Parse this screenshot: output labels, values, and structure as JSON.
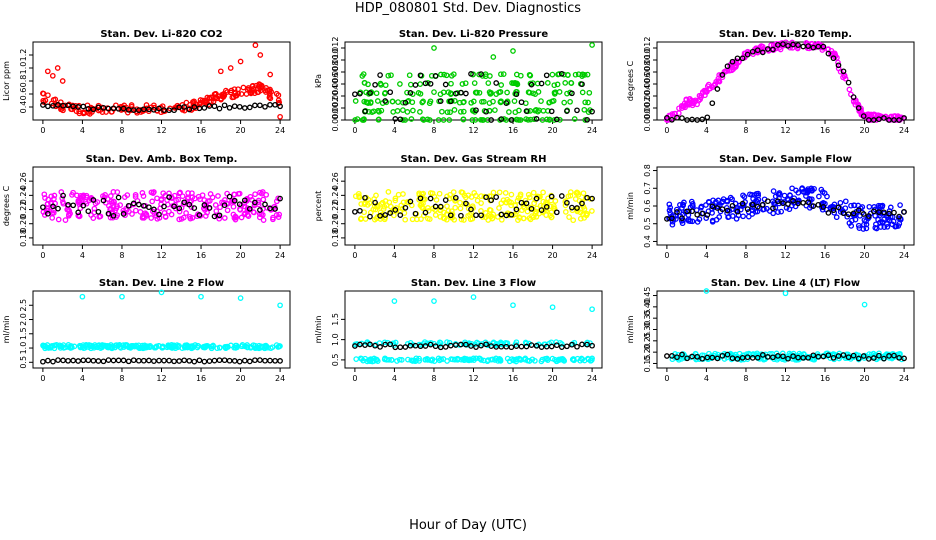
{
  "figure": {
    "title": "HDP_080801  Std. Dev. Diagnostics",
    "xlabel": "Hour of Day (UTC)",
    "black_color": "#000000"
  },
  "chart_data": [
    {
      "type": "scatter",
      "title": "Stan. Dev. Li-820 CO2",
      "ylabel": "Licor ppm",
      "color": "#ff0000",
      "xlim": [
        -1,
        25
      ],
      "ylim": [
        0.2,
        1.4
      ],
      "xticks": [
        0,
        4,
        8,
        12,
        16,
        20,
        24
      ],
      "yticks": [
        "0.4",
        "0.6",
        "0.8",
        "1.0",
        "1.2"
      ],
      "series": [
        {
          "name": "samples",
          "profile": [
            [
              0,
              0.55
            ],
            [
              1,
              0.5
            ],
            [
              2,
              0.42
            ],
            [
              3,
              0.36
            ],
            [
              6,
              0.36
            ],
            [
              10,
              0.38
            ],
            [
              14,
              0.39
            ],
            [
              16,
              0.45
            ],
            [
              18,
              0.58
            ],
            [
              20,
              0.62
            ],
            [
              22,
              0.7
            ],
            [
              24,
              0.5
            ]
          ],
          "spread": 0.14,
          "outliers": [
            [
              0.5,
              0.95
            ],
            [
              1,
              0.88
            ],
            [
              1.5,
              1.0
            ],
            [
              2,
              0.8
            ],
            [
              18,
              0.95
            ],
            [
              19,
              1.0
            ],
            [
              20,
              1.1
            ],
            [
              21.5,
              1.35
            ],
            [
              22,
              1.2
            ],
            [
              23,
              0.9
            ],
            [
              24,
              0.25
            ]
          ],
          "n": 200
        },
        {
          "name": "black",
          "profile": [
            [
              0,
              0.42
            ],
            [
              6,
              0.38
            ],
            [
              12,
              0.37
            ],
            [
              18,
              0.4
            ],
            [
              24,
              0.42
            ]
          ],
          "spread": 0.05,
          "n": 48
        }
      ]
    },
    {
      "type": "scatter",
      "title": "Stan. Dev. Li-820 Pressure",
      "ylabel": "kPa",
      "color": "#00cc00",
      "xlim": [
        -1,
        25
      ],
      "ylim": [
        0,
        0.013
      ],
      "xticks": [
        0,
        4,
        8,
        12,
        16,
        20,
        24
      ],
      "yticks": [
        "0.000",
        "0.002",
        "0.004",
        "0.006",
        "0.008",
        "0.010",
        "0.012"
      ],
      "series": [
        {
          "name": "samples",
          "levels": [
            0,
            0.0015,
            0.003,
            0.0045,
            0.006,
            0.0075
          ],
          "n": 260,
          "outliers": [
            [
              8,
              0.012
            ],
            [
              14,
              0.0105
            ],
            [
              16,
              0.0115
            ],
            [
              24,
              0.0125
            ]
          ]
        },
        {
          "name": "black",
          "levels": [
            0,
            0.0015,
            0.003,
            0.0045,
            0.006,
            0.0075
          ],
          "n": 48
        }
      ]
    },
    {
      "type": "scatter",
      "title": "Stan. Dev. Li-820 Temp.",
      "ylabel": "degrees C",
      "color": "#ff00ff",
      "xlim": [
        -1,
        25
      ],
      "ylim": [
        0,
        0.013
      ],
      "xticks": [
        0,
        4,
        8,
        12,
        16,
        20,
        24
      ],
      "yticks": [
        "0.000",
        "0.002",
        "0.004",
        "0.006",
        "0.008",
        "0.010",
        "0.012"
      ],
      "series": [
        {
          "name": "samples",
          "profile": [
            [
              0,
              0
            ],
            [
              1,
              0.0012
            ],
            [
              2,
              0.003
            ],
            [
              3,
              0.003
            ],
            [
              4,
              0.005
            ],
            [
              6,
              0.008
            ],
            [
              8,
              0.011
            ],
            [
              10,
              0.012
            ],
            [
              12,
              0.0124
            ],
            [
              14,
              0.0124
            ],
            [
              16,
              0.012
            ],
            [
              17,
              0.0105
            ],
            [
              18,
              0.007
            ],
            [
              19,
              0.003
            ],
            [
              20,
              0.0005
            ],
            [
              24,
              0
            ]
          ],
          "spread": 0.0012,
          "n": 260
        },
        {
          "name": "black",
          "profile": [
            [
              0,
              0
            ],
            [
              4,
              0
            ],
            [
              6,
              0.009
            ],
            [
              8,
              0.011
            ],
            [
              12,
              0.0124
            ],
            [
              16,
              0.012
            ],
            [
              18,
              0.0075
            ],
            [
              20,
              0
            ],
            [
              24,
              0
            ]
          ],
          "spread": 0.0008,
          "n": 48
        }
      ]
    },
    {
      "type": "scatter",
      "title": "Stan. Dev. Amb. Box Temp.",
      "ylabel": "degrees C",
      "color": "#ff00ff",
      "xlim": [
        -1,
        25
      ],
      "ylim": [
        0.17,
        0.28
      ],
      "xticks": [
        0,
        4,
        8,
        12,
        16,
        20,
        24
      ],
      "yticks": [
        "0.18",
        "0.20",
        "0.22",
        "0.24",
        "0.26"
      ],
      "series": [
        {
          "name": "samples",
          "profile": [
            [
              0,
              0.225
            ],
            [
              24,
              0.225
            ]
          ],
          "spread": 0.04,
          "n": 280
        },
        {
          "name": "black",
          "profile": [
            [
              0,
              0.225
            ],
            [
              24,
              0.225
            ]
          ],
          "spread": 0.03,
          "n": 48
        }
      ]
    },
    {
      "type": "scatter",
      "title": "Stan. Dev. Gas Stream RH",
      "ylabel": "percent",
      "color": "#ffff00",
      "xlim": [
        -1,
        25
      ],
      "ylim": [
        0.17,
        0.28
      ],
      "xticks": [
        0,
        4,
        8,
        12,
        16,
        20,
        24
      ],
      "yticks": [
        "0.18",
        "0.20",
        "0.22",
        "0.24",
        "0.26"
      ],
      "series": [
        {
          "name": "samples",
          "profile": [
            [
              0,
              0.225
            ],
            [
              24,
              0.225
            ]
          ],
          "spread": 0.04,
          "n": 280
        },
        {
          "name": "black",
          "profile": [
            [
              0,
              0.225
            ],
            [
              24,
              0.225
            ]
          ],
          "spread": 0.03,
          "n": 48
        }
      ]
    },
    {
      "type": "scatter",
      "title": "Stan. Dev. Sample Flow",
      "ylabel": "ml/min",
      "color": "#0000ff",
      "xlim": [
        -1,
        25
      ],
      "ylim": [
        0.38,
        0.82
      ],
      "xticks": [
        0,
        4,
        8,
        12,
        16,
        20,
        24
      ],
      "yticks": [
        "0.4",
        "0.5",
        "0.6",
        "0.7",
        "0.8"
      ],
      "series": [
        {
          "name": "samples",
          "profile": [
            [
              0,
              0.55
            ],
            [
              4,
              0.57
            ],
            [
              8,
              0.6
            ],
            [
              12,
              0.63
            ],
            [
              15,
              0.66
            ],
            [
              17,
              0.58
            ],
            [
              20,
              0.53
            ],
            [
              24,
              0.55
            ]
          ],
          "spread": 0.13,
          "n": 280
        },
        {
          "name": "black",
          "profile": [
            [
              0,
              0.55
            ],
            [
              12,
              0.62
            ],
            [
              24,
              0.54
            ]
          ],
          "spread": 0.06,
          "n": 48
        }
      ]
    },
    {
      "type": "scatter",
      "title": "Stan. Dev. Line 2 Flow",
      "ylabel": "ml/min",
      "color": "#00ffff",
      "xlim": [
        -1,
        25
      ],
      "ylim": [
        0.3,
        3.0
      ],
      "xticks": [
        0,
        4,
        8,
        12,
        16,
        20,
        24
      ],
      "yticks": [
        "0.5",
        "1.0",
        "1.5",
        "2.0",
        "2.5"
      ],
      "series": [
        {
          "name": "samples",
          "profile": [
            [
              0,
              1.05
            ],
            [
              24,
              1.05
            ]
          ],
          "spread": 0.12,
          "n": 220,
          "outliers": [
            [
              4,
              2.8
            ],
            [
              8,
              2.8
            ],
            [
              12,
              2.95
            ],
            [
              16,
              2.8
            ],
            [
              20,
              2.75
            ],
            [
              24,
              2.5
            ]
          ]
        },
        {
          "name": "black",
          "profile": [
            [
              0,
              0.55
            ],
            [
              24,
              0.55
            ]
          ],
          "spread": 0.06,
          "n": 48
        }
      ]
    },
    {
      "type": "scatter",
      "title": "Stan. Dev. Line 3 Flow",
      "ylabel": "ml/min",
      "color": "#00ffff",
      "xlim": [
        -1,
        25
      ],
      "ylim": [
        0.3,
        2.2
      ],
      "xticks": [
        0,
        4,
        8,
        12,
        16,
        20,
        24
      ],
      "yticks": [
        "0.5",
        "1.0",
        "1.5"
      ],
      "series": [
        {
          "name": "samples",
          "profile": [
            [
              0,
              0.5
            ],
            [
              24,
              0.5
            ]
          ],
          "spread": 0.08,
          "n": 220,
          "extra_band": [
            0.9,
            0.08
          ],
          "outliers": [
            [
              4,
              1.95
            ],
            [
              8,
              1.95
            ],
            [
              12,
              2.05
            ],
            [
              16,
              1.85
            ],
            [
              20,
              1.8
            ],
            [
              24,
              1.75
            ]
          ]
        },
        {
          "name": "black",
          "profile": [
            [
              0,
              0.85
            ],
            [
              24,
              0.85
            ]
          ],
          "spread": 0.08,
          "n": 48
        }
      ]
    },
    {
      "type": "scatter",
      "title": "Stan. Dev. Line 4 (LT) Flow",
      "ylabel": "ml/min",
      "color": "#00ffff",
      "xlim": [
        -1,
        25
      ],
      "ylim": [
        0.13,
        0.47
      ],
      "xticks": [
        0,
        4,
        8,
        12,
        16,
        20,
        24
      ],
      "yticks": [
        "0.15",
        "0.20",
        "0.25",
        "0.30",
        "0.35",
        "0.40",
        "0.45"
      ],
      "series": [
        {
          "name": "samples",
          "profile": [
            [
              0,
              0.18
            ],
            [
              24,
              0.18
            ]
          ],
          "spread": 0.03,
          "n": 220,
          "outliers": [
            [
              4,
              0.47
            ],
            [
              12,
              0.46
            ],
            [
              20,
              0.41
            ]
          ]
        },
        {
          "name": "black",
          "profile": [
            [
              0,
              0.18
            ],
            [
              24,
              0.18
            ]
          ],
          "spread": 0.02,
          "n": 48
        }
      ]
    }
  ]
}
